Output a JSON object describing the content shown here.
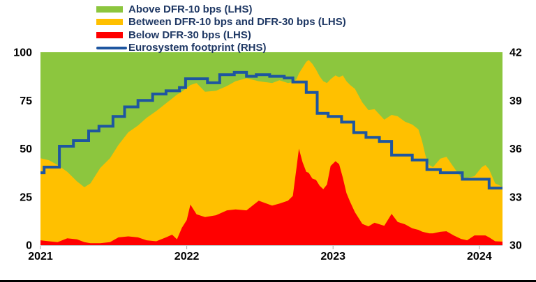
{
  "page": {
    "background": "#FFFFFF",
    "bottom_bar_color": "#000000",
    "legend_text_color": "#1F3864"
  },
  "legend": {
    "items": [
      {
        "label": "Above DFR-10 bps (LHS)",
        "color": "#8CC63E",
        "type": "area"
      },
      {
        "label": "Between DFR-10 bps and DFR-30 bps (LHS)",
        "color": "#FFC000",
        "type": "area"
      },
      {
        "label": "Below DFR-30 bps (LHS)",
        "color": "#FF0000",
        "type": "area"
      },
      {
        "label": "Eurosystem footprint (RHS)",
        "color": "#1E56A0",
        "type": "line"
      }
    ]
  },
  "chart_data": {
    "type": "area",
    "stacked": true,
    "grid": false,
    "x_unit": "months since Jan 2021",
    "x_max": 37.9,
    "x": [
      0,
      0.7,
      1.4,
      2.2,
      3.0,
      3.6,
      4.1,
      4.9,
      5.7,
      6.4,
      7.2,
      8.0,
      8.7,
      9.5,
      10.3,
      10.8,
      11.2,
      11.6,
      12.0,
      12.3,
      12.8,
      13.5,
      14.4,
      15.3,
      16.0,
      16.9,
      17.9,
      19.0,
      19.6,
      20.3,
      20.7,
      21.0,
      21.2,
      21.5,
      21.8,
      22.0,
      22.3,
      22.6,
      22.9,
      23.2,
      23.5,
      23.8,
      24.2,
      24.5,
      24.8,
      25.1,
      25.4,
      25.8,
      26.4,
      26.9,
      27.4,
      28.2,
      28.8,
      29.3,
      29.9,
      30.5,
      31.0,
      31.3,
      31.6,
      31.9,
      32.2,
      32.8,
      33.3,
      33.9,
      34.5,
      35.0,
      35.6,
      36.2,
      36.5,
      36.8,
      37.3,
      37.9
    ],
    "series": [
      {
        "name": "Below DFR-30 bps (LHS)",
        "color": "#FF0000",
        "axis": "left",
        "values": [
          2.5,
          2,
          1.5,
          3.5,
          3,
          1.5,
          1,
          1,
          1.5,
          4,
          4.5,
          4,
          2.5,
          2,
          4,
          5.4,
          3,
          9,
          13,
          21,
          16,
          14.5,
          15.5,
          18,
          18.5,
          18,
          23,
          20.5,
          21.5,
          23,
          25.5,
          40,
          50,
          43,
          38,
          37.5,
          34.5,
          33.8,
          30.8,
          29,
          31.4,
          41,
          43.5,
          42,
          35,
          27,
          22.4,
          17,
          11,
          9.7,
          11.6,
          10,
          16.2,
          12,
          10.8,
          8.7,
          7.9,
          7,
          6.5,
          6.1,
          6.1,
          6.9,
          7.2,
          5,
          3.2,
          2.5,
          5,
          5,
          5,
          4,
          2,
          1.8
        ]
      },
      {
        "name": "Between DFR-10 bps and DFR-30 bps (LHS)",
        "color": "#FFC000",
        "axis": "left",
        "values": [
          42.5,
          42,
          40,
          34.5,
          30,
          28.5,
          31,
          39,
          43.5,
          48,
          54,
          58,
          63.5,
          67.5,
          69.5,
          70.6,
          75,
          70.5,
          68.5,
          62,
          68,
          65,
          64.5,
          64.5,
          66.5,
          68.5,
          62,
          63.5,
          64,
          61,
          59,
          46,
          39,
          49,
          57,
          58.5,
          59.5,
          57.2,
          56.7,
          56,
          52.6,
          45,
          44.5,
          45,
          53,
          58,
          60.6,
          64,
          63,
          60.3,
          58.9,
          55,
          51.3,
          54.8,
          53.2,
          53.8,
          52.1,
          47,
          39.5,
          35.4,
          34.3,
          37.9,
          38.6,
          35.4,
          31.8,
          32.5,
          30.7,
          35.4,
          36.5,
          35.3,
          30,
          28.5
        ]
      },
      {
        "name": "Above DFR-10 bps (LHS)",
        "color": "#8CC63E",
        "axis": "left",
        "values": [
          55,
          56,
          58.5,
          62,
          67,
          70,
          68,
          60,
          55,
          48,
          41.5,
          38,
          34,
          30.5,
          26.5,
          24,
          22,
          20.5,
          18.5,
          17,
          16,
          20.5,
          20,
          17.5,
          15,
          13.5,
          15,
          16,
          14.5,
          16,
          15.5,
          14,
          11,
          8,
          5,
          4,
          6,
          9,
          12.5,
          15,
          16,
          14,
          12,
          13,
          12,
          15,
          17,
          19,
          26,
          30,
          29.5,
          35,
          32.5,
          33.2,
          36,
          37.5,
          40,
          46,
          54,
          58.5,
          59.6,
          55.2,
          54.2,
          59.6,
          65,
          65,
          64.3,
          59.6,
          58.5,
          60.7,
          68,
          69.7
        ]
      }
    ],
    "line_series": {
      "name": "Eurosystem footprint (RHS)",
      "color": "#1E56A0",
      "axis": "right",
      "step": true,
      "points": [
        [
          0,
          34.5
        ],
        [
          0.3,
          34.85
        ],
        [
          1.55,
          36.15
        ],
        [
          2.7,
          36.5
        ],
        [
          3.95,
          37.1
        ],
        [
          4.8,
          37.4
        ],
        [
          5.95,
          38.0
        ],
        [
          6.9,
          38.6
        ],
        [
          8.0,
          39.0
        ],
        [
          9.2,
          39.4
        ],
        [
          10.3,
          39.6
        ],
        [
          11.4,
          39.8
        ],
        [
          11.9,
          40.35
        ],
        [
          13.7,
          40.1
        ],
        [
          14.7,
          40.6
        ],
        [
          15.9,
          40.75
        ],
        [
          16.9,
          40.5
        ],
        [
          17.7,
          40.6
        ],
        [
          18.8,
          40.5
        ],
        [
          20.0,
          40.4
        ],
        [
          20.7,
          40.15
        ],
        [
          21.8,
          39.5
        ],
        [
          22.7,
          38.2
        ],
        [
          23.6,
          38.0
        ],
        [
          24.7,
          37.65
        ],
        [
          25.7,
          37.0
        ],
        [
          26.7,
          36.7
        ],
        [
          27.8,
          36.45
        ],
        [
          28.8,
          35.6
        ],
        [
          30.5,
          35.3
        ],
        [
          31.7,
          34.7
        ],
        [
          32.8,
          34.5
        ],
        [
          34.6,
          34.1
        ],
        [
          36.8,
          33.55
        ]
      ]
    },
    "left_axis": {
      "min": 0,
      "max": 100,
      "ticks": [
        "0",
        "25",
        "50",
        "75",
        "100"
      ],
      "tick_values": [
        0,
        25,
        50,
        75,
        100
      ]
    },
    "right_axis": {
      "min": 30,
      "max": 42,
      "ticks": [
        "30",
        "33",
        "36",
        "39",
        "42"
      ],
      "tick_values": [
        30,
        33,
        36,
        39,
        42
      ]
    },
    "x_axis": {
      "tick_labels": [
        "2021",
        "2022",
        "2023",
        "2024"
      ],
      "tick_t": [
        0,
        12,
        24,
        36
      ]
    }
  }
}
